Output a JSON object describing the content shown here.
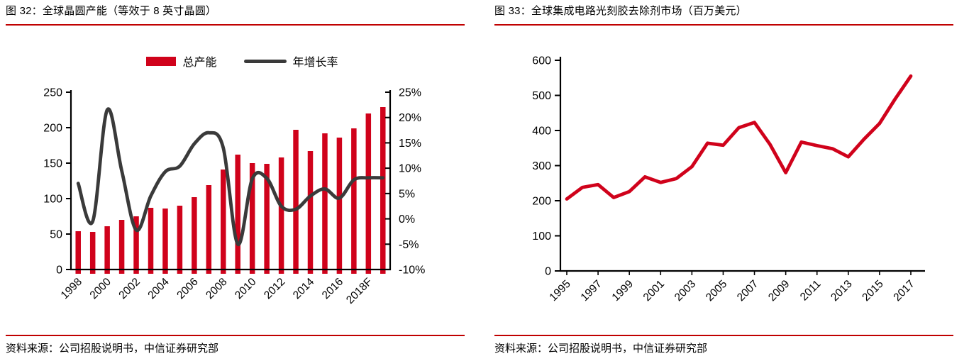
{
  "colors": {
    "series_red": "#D0021B",
    "growth_line_dark": "#3A3A3A",
    "rule_red": "#C00000",
    "axis_black": "#000000"
  },
  "figures": [
    {
      "title": "图 32：全球晶圆产能（等效于 8 英寸晶圆）",
      "legend": {
        "bar_label": "总产能",
        "line_label": "年增长率"
      },
      "source": "资料来源：公司招股说明书，中信证券研究部"
    },
    {
      "title": "图 33：全球集成电路光刻胶去除剂市场（百万美元）",
      "source": "资料来源：公司招股说明书，中信证券研究部"
    }
  ],
  "chart_data": [
    {
      "type": "bar",
      "title": "全球晶圆产能（等效于 8 英寸晶圆）",
      "categories": [
        "1998",
        "1999",
        "2000",
        "2001",
        "2002",
        "2003",
        "2004",
        "2005",
        "2006",
        "2007",
        "2008",
        "2009",
        "2010",
        "2011",
        "2012",
        "2013",
        "2014",
        "2015",
        "2016",
        "2017",
        "2018F",
        "2019F"
      ],
      "x_tick_labels": [
        "1998",
        "2000",
        "2002",
        "2004",
        "2006",
        "2008",
        "2010",
        "2012",
        "2014",
        "2016",
        "2018F"
      ],
      "series": [
        {
          "name": "总产能",
          "type": "bar",
          "axis": "left",
          "values": [
            54,
            53,
            61,
            70,
            75,
            87,
            86,
            90,
            102,
            119,
            141,
            162,
            150,
            149,
            158,
            197,
            167,
            192,
            186,
            199,
            220,
            229
          ]
        },
        {
          "name": "年增长率",
          "type": "line",
          "axis": "right",
          "values": [
            7,
            -0.5,
            21.5,
            9.5,
            -2.2,
            4.5,
            9.3,
            10.4,
            14.8,
            17,
            14,
            -5,
            7.9,
            8,
            2.5,
            1.9,
            4.5,
            5.9,
            4.1,
            7.7,
            8.1,
            8.1
          ]
        }
      ],
      "left_axis": {
        "min": 0,
        "max": 250,
        "step": 50,
        "ticks": [
          "0",
          "50",
          "100",
          "150",
          "200",
          "250"
        ]
      },
      "right_axis": {
        "min": -10,
        "max": 25,
        "step": 5,
        "ticks": [
          "-10%",
          "-5%",
          "0%",
          "5%",
          "10%",
          "15%",
          "20%",
          "25%"
        ]
      },
      "grid": false,
      "legend_position": "top"
    },
    {
      "type": "line",
      "title": "全球集成电路光刻胶去除剂市场（百万美元）",
      "categories": [
        "1995",
        "1996",
        "1997",
        "1998",
        "1999",
        "2000",
        "2001",
        "2002",
        "2003",
        "2004",
        "2005",
        "2006",
        "2007",
        "2008",
        "2009",
        "2010",
        "2011",
        "2012",
        "2013",
        "2014",
        "2015",
        "2016",
        "2017"
      ],
      "x_tick_labels": [
        "1995",
        "1997",
        "1999",
        "2001",
        "2003",
        "2005",
        "2007",
        "2009",
        "2011",
        "2013",
        "2015",
        "2017"
      ],
      "values": [
        205,
        238,
        246,
        209,
        226,
        268,
        252,
        263,
        297,
        364,
        358,
        408,
        423,
        360,
        280,
        367,
        357,
        348,
        325,
        375,
        420,
        490,
        555
      ],
      "y_axis": {
        "min": 0,
        "max": 600,
        "step": 100,
        "ticks": [
          "0",
          "100",
          "200",
          "300",
          "400",
          "500",
          "600"
        ]
      },
      "grid": false,
      "line_color": "#D0021B"
    }
  ]
}
